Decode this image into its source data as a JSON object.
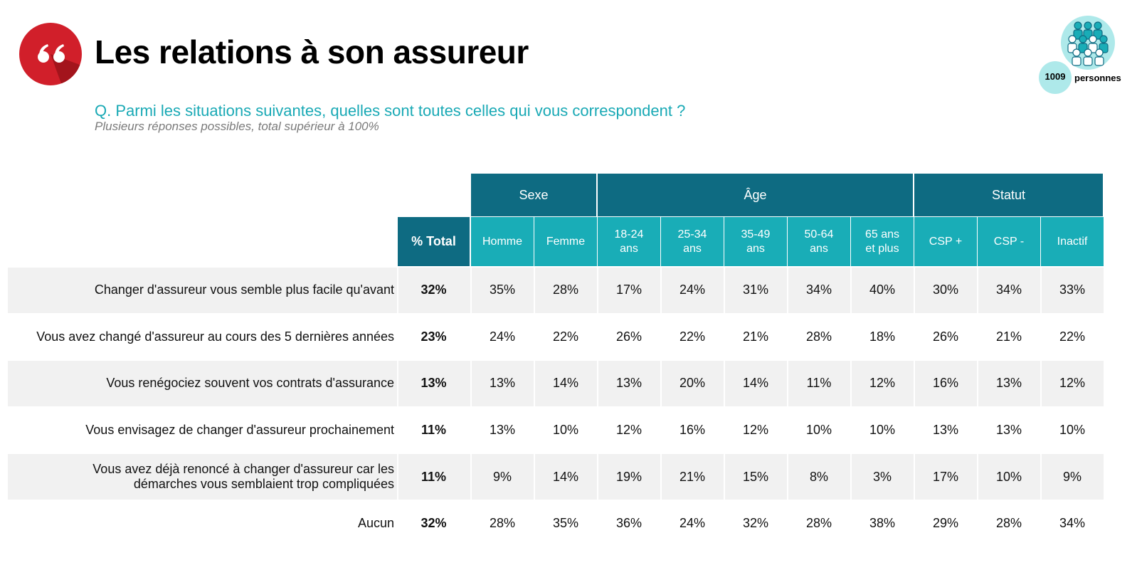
{
  "header": {
    "title": "Les relations à son assureur",
    "question": "Q. Parmi les situations suivantes, quelles sont toutes celles qui vous correspondent ?",
    "note": "Plusieurs réponses possibles, total supérieur à 100%",
    "sample_count": "1009",
    "sample_label": "personnes"
  },
  "colors": {
    "accent": "#d11f2a",
    "dark_teal": "#0e6b82",
    "teal": "#19adb7",
    "question": "#19a9b5",
    "row_band": "#f1f1f1"
  },
  "icons": {
    "logo": "quote-icon",
    "sample": "people-group-icon"
  },
  "table": {
    "groups": [
      {
        "label": "Sexe",
        "span": 2
      },
      {
        "label": "Âge",
        "span": 5
      },
      {
        "label": "Statut",
        "span": 3
      }
    ],
    "total_header": "% Total",
    "columns": [
      [
        "Homme"
      ],
      [
        "Femme"
      ],
      [
        "18-24",
        "ans"
      ],
      [
        "25-34",
        "ans"
      ],
      [
        "35-49",
        "ans"
      ],
      [
        "50-64",
        "ans"
      ],
      [
        "65 ans",
        "et plus"
      ],
      [
        "CSP +"
      ],
      [
        "CSP -"
      ],
      [
        "Inactif"
      ]
    ],
    "rows": [
      {
        "label": [
          "Changer d'assureur vous semble plus facile qu'avant"
        ],
        "total": "32%",
        "values": [
          "35%",
          "28%",
          "17%",
          "24%",
          "31%",
          "34%",
          "40%",
          "30%",
          "34%",
          "33%"
        ]
      },
      {
        "label": [
          "Vous avez changé d'assureur au cours des 5 dernières années"
        ],
        "total": "23%",
        "values": [
          "24%",
          "22%",
          "26%",
          "22%",
          "21%",
          "28%",
          "18%",
          "26%",
          "21%",
          "22%"
        ]
      },
      {
        "label": [
          "Vous renégociez souvent vos contrats d'assurance"
        ],
        "total": "13%",
        "values": [
          "13%",
          "14%",
          "13%",
          "20%",
          "14%",
          "11%",
          "12%",
          "16%",
          "13%",
          "12%"
        ]
      },
      {
        "label": [
          "Vous envisagez de changer d'assureur prochainement"
        ],
        "total": "11%",
        "values": [
          "13%",
          "10%",
          "12%",
          "16%",
          "12%",
          "10%",
          "10%",
          "13%",
          "13%",
          "10%"
        ]
      },
      {
        "label": [
          "Vous avez déjà renoncé à changer d'assureur car les",
          "démarches vous semblaient trop compliquées"
        ],
        "total": "11%",
        "values": [
          "9%",
          "14%",
          "19%",
          "21%",
          "15%",
          "8%",
          "3%",
          "17%",
          "10%",
          "9%"
        ]
      },
      {
        "label": [
          "Aucun"
        ],
        "total": "32%",
        "values": [
          "28%",
          "35%",
          "36%",
          "24%",
          "32%",
          "28%",
          "38%",
          "29%",
          "28%",
          "34%"
        ]
      }
    ]
  }
}
